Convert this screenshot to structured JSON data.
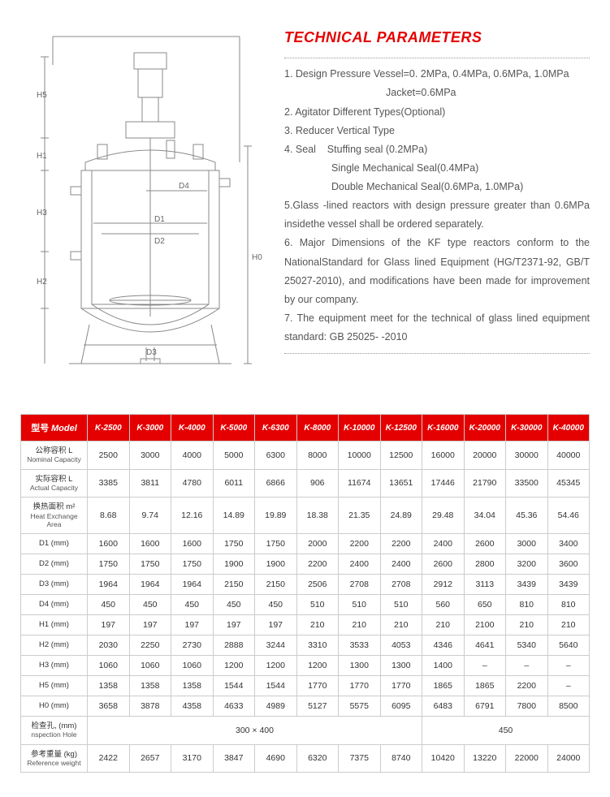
{
  "colors": {
    "accent": "#e40000",
    "text": "#555555",
    "border": "#cccccc",
    "diagram_stroke": "#888888"
  },
  "diagram": {
    "labels": [
      "H5",
      "H1",
      "H3",
      "H2",
      "D4",
      "D1",
      "D2",
      "D3",
      "H0"
    ]
  },
  "params": {
    "title": "TECHNICAL PARAMETERS",
    "lines": [
      "1. Design Pressure Vessel=0. 2MPa, 0.4MPa, 0.6MPa, 1.0MPa",
      "Jacket=0.6MPa",
      "2. Agitator Different Types(Optional)",
      "3. Reducer Vertical Type",
      "4. Seal    Stuffing seal (0.2MPa)",
      "Single Mechanical Seal(0.4MPa)",
      "Double Mechanical Seal(0.6MPa, 1.0MPa)",
      "5.Glass -lined reactors with design pressure greater than 0.6MPa insidethe vessel shall be ordered separately.",
      "6. Major Dimensions of the KF type reactors conform to the NationalStandard for Glass lined Equipment (HG/T2371-92, GB/T 25027-2010), and modifications have been made for improvement by our company.",
      "7. The equipment meet for the technical of glass lined equipment standard: GB 25025- -2010"
    ]
  },
  "table": {
    "header_label": {
      "cn": "型号",
      "en": "Model"
    },
    "models": [
      "K-2500",
      "K-3000",
      "K-4000",
      "K-5000",
      "K-6300",
      "K-8000",
      "K-10000",
      "K-12500",
      "K-16000",
      "K-20000",
      "K-30000",
      "K-40000"
    ],
    "rows": [
      {
        "label_cn": "公称容积 L",
        "label_en": "Nominal Capacity",
        "cells": [
          "2500",
          "3000",
          "4000",
          "5000",
          "6300",
          "8000",
          "10000",
          "12500",
          "16000",
          "20000",
          "30000",
          "40000"
        ]
      },
      {
        "label_cn": "实际容积 L",
        "label_en": "Actual Capacity",
        "cells": [
          "3385",
          "3811",
          "4780",
          "6011",
          "6866",
          "906",
          "11674",
          "13651",
          "17446",
          "21790",
          "33500",
          "45345"
        ]
      },
      {
        "label_cn": "换热面积 m²",
        "label_en": "Heat Exchange Area",
        "cells": [
          "8.68",
          "9.74",
          "12.16",
          "14.89",
          "19.89",
          "18.38",
          "21.35",
          "24.89",
          "29.48",
          "34.04",
          "45.36",
          "54.46"
        ]
      },
      {
        "label_cn": "D1 (mm)",
        "label_en": "",
        "cells": [
          "1600",
          "1600",
          "1600",
          "1750",
          "1750",
          "2000",
          "2200",
          "2200",
          "2400",
          "2600",
          "3000",
          "3400"
        ]
      },
      {
        "label_cn": "D2 (mm)",
        "label_en": "",
        "cells": [
          "1750",
          "1750",
          "1750",
          "1900",
          "1900",
          "2200",
          "2400",
          "2400",
          "2600",
          "2800",
          "3200",
          "3600"
        ]
      },
      {
        "label_cn": "D3 (mm)",
        "label_en": "",
        "cells": [
          "1964",
          "1964",
          "1964",
          "2150",
          "2150",
          "2506",
          "2708",
          "2708",
          "2912",
          "3113",
          "3439",
          "3439"
        ]
      },
      {
        "label_cn": "D4 (mm)",
        "label_en": "",
        "cells": [
          "450",
          "450",
          "450",
          "450",
          "450",
          "510",
          "510",
          "510",
          "560",
          "650",
          "810",
          "810"
        ]
      },
      {
        "label_cn": "H1 (mm)",
        "label_en": "",
        "cells": [
          "197",
          "197",
          "197",
          "197",
          "197",
          "210",
          "210",
          "210",
          "210",
          "2100",
          "210",
          "210"
        ]
      },
      {
        "label_cn": "H2 (mm)",
        "label_en": "",
        "cells": [
          "2030",
          "2250",
          "2730",
          "2888",
          "3244",
          "3310",
          "3533",
          "4053",
          "4346",
          "4641",
          "5340",
          "5640"
        ]
      },
      {
        "label_cn": "H3 (mm)",
        "label_en": "",
        "cells": [
          "1060",
          "1060",
          "1060",
          "1200",
          "1200",
          "1200",
          "1300",
          "1300",
          "1400",
          "–",
          "–",
          "–"
        ]
      },
      {
        "label_cn": "H5 (mm)",
        "label_en": "",
        "cells": [
          "1358",
          "1358",
          "1358",
          "1544",
          "1544",
          "1770",
          "1770",
          "1770",
          "1865",
          "1865",
          "2200",
          "–"
        ]
      },
      {
        "label_cn": "H0 (mm)",
        "label_en": "",
        "cells": [
          "3658",
          "3878",
          "4358",
          "4633",
          "4989",
          "5127",
          "5575",
          "6095",
          "6483",
          "6791",
          "7800",
          "8500"
        ]
      }
    ],
    "inspection_row": {
      "label_cn": "检查孔, (mm)",
      "label_en": "nspection Hole",
      "spans": [
        {
          "colspan": 8,
          "value": "300 × 400"
        },
        {
          "colspan": 4,
          "value": "450"
        }
      ]
    },
    "weight_row": {
      "label_cn": "参考重量 (kg)",
      "label_en": "Reference weight",
      "cells": [
        "2422",
        "2657",
        "3170",
        "3847",
        "4690",
        "6320",
        "7375",
        "8740",
        "10420",
        "13220",
        "22000",
        "24000"
      ]
    }
  }
}
